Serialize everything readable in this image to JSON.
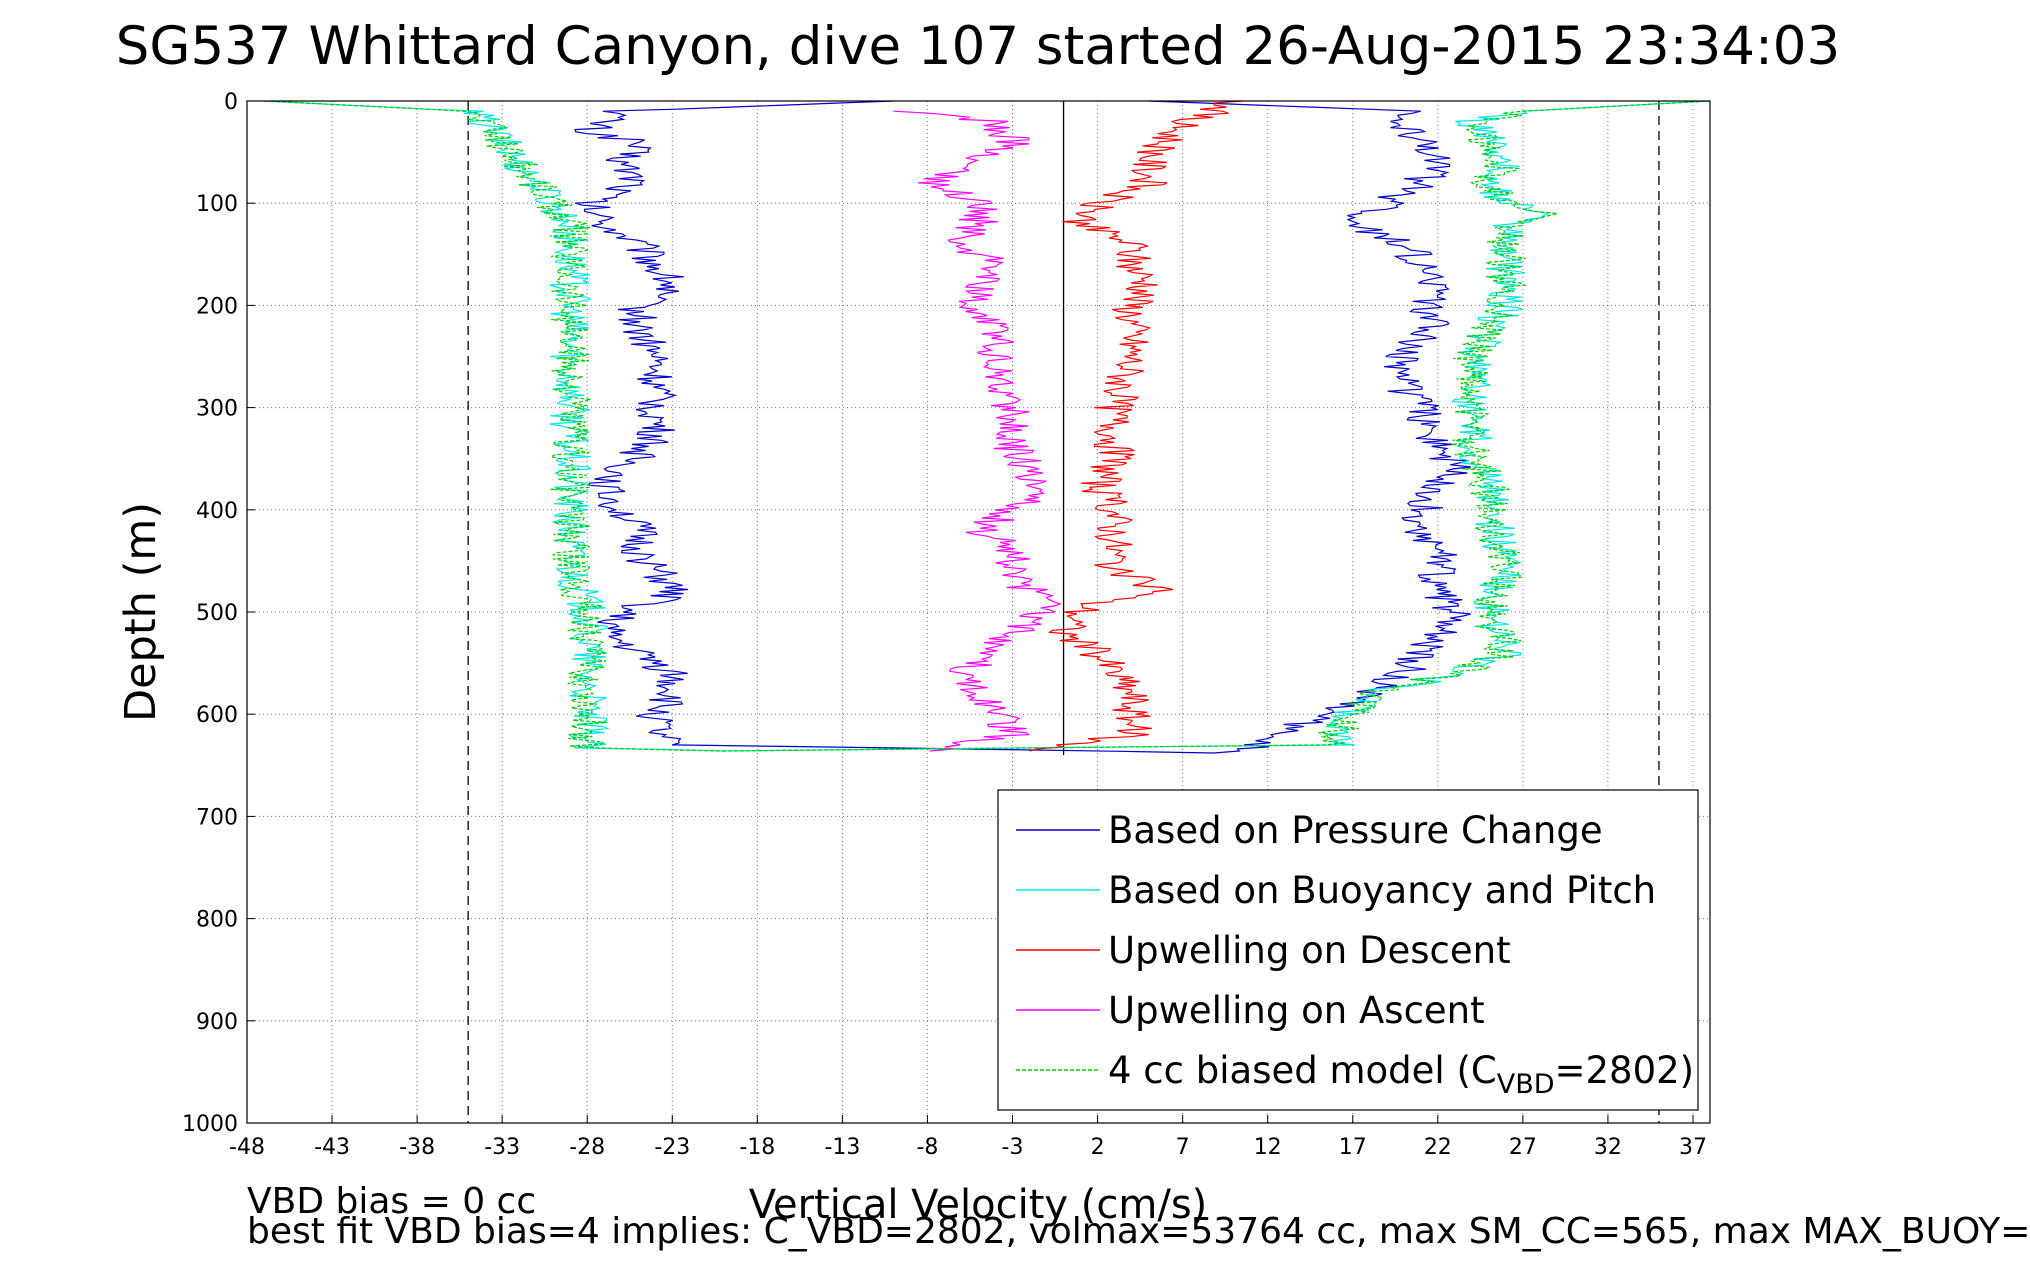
{
  "chart_data": {
    "type": "line",
    "title": "SG537 Whittard Canyon, dive 107 started 26-Aug-2015 23:34:03",
    "xlabel": "Vertical Velocity (cm/s)",
    "ylabel": "Depth (m)",
    "xlim": [
      -48,
      38
    ],
    "ylim": [
      1000,
      0
    ],
    "y_reversed": true,
    "x_ticks": [
      -48,
      -43,
      -38,
      -33,
      -28,
      -23,
      -18,
      -13,
      -8,
      -3,
      2,
      7,
      12,
      17,
      22,
      27,
      32,
      37
    ],
    "y_ticks": [
      0,
      100,
      200,
      300,
      400,
      500,
      600,
      700,
      800,
      900,
      1000
    ],
    "grid": true,
    "grid_style": "dotted",
    "legend_position": "bottom-right",
    "reference_lines": [
      {
        "x": -35,
        "style": "dashed",
        "color": "#000000"
      },
      {
        "x": 35,
        "style": "dashed",
        "color": "#000000"
      },
      {
        "x": 0,
        "style": "solid",
        "color": "#000000",
        "depth_range": [
          0,
          640
        ]
      }
    ],
    "series": [
      {
        "name": "Based on Pressure Change",
        "color": "#0000cc",
        "depth": [
          0,
          10,
          20,
          30,
          40,
          60,
          80,
          100,
          120,
          140,
          160,
          180,
          200,
          220,
          250,
          280,
          300,
          330,
          360,
          380,
          400,
          420,
          440,
          460,
          480,
          490,
          500,
          520,
          540,
          560,
          580,
          600,
          620,
          630,
          633,
          638,
          620,
          600,
          580,
          560,
          540,
          520,
          500,
          480,
          460,
          440,
          420,
          400,
          380,
          360,
          340,
          320,
          300,
          280,
          260,
          240,
          220,
          200,
          180,
          160,
          140,
          120,
          100,
          80,
          60,
          40,
          20,
          10,
          0
        ],
        "values": [
          -10,
          -26,
          -27,
          -28,
          -25,
          -26,
          -25,
          -28,
          -27,
          -25,
          -24,
          -23,
          -25,
          -25,
          -24,
          -24,
          -24,
          -24,
          -26,
          -27,
          -26,
          -25,
          -25,
          -24,
          -23,
          -24,
          -26,
          -27,
          -25,
          -23,
          -23,
          -24,
          -24,
          -23,
          -10,
          10,
          13,
          15,
          18,
          20,
          21,
          22,
          23,
          22,
          22,
          22,
          21,
          21,
          22,
          23,
          22,
          21,
          21,
          20,
          20,
          20,
          22,
          21,
          22,
          21,
          20,
          17,
          19,
          21,
          22,
          21,
          20,
          21,
          5
        ]
      },
      {
        "name": "Based on Buoyancy and Pitch",
        "color": "#00e5e5",
        "depth": [
          0,
          10,
          20,
          40,
          60,
          80,
          100,
          120,
          140,
          160,
          180,
          200,
          250,
          300,
          350,
          380,
          400,
          450,
          500,
          550,
          600,
          620,
          633,
          636,
          630,
          620,
          600,
          580,
          560,
          540,
          500,
          450,
          400,
          370,
          350,
          300,
          250,
          200,
          180,
          150,
          120,
          110,
          100,
          80,
          60,
          40,
          20,
          10,
          0
        ],
        "values": [
          -47,
          -35,
          -34,
          -33,
          -32,
          -31,
          -30,
          -29,
          -29,
          -29,
          -29,
          -29,
          -29,
          -29,
          -29,
          -29,
          -29,
          -29,
          -28,
          -28,
          -28,
          -28,
          -28,
          -20,
          16,
          16,
          17,
          18,
          23,
          26,
          25,
          26,
          25,
          25,
          24,
          24,
          24,
          26,
          26,
          26,
          26,
          28,
          26,
          25,
          26,
          25,
          24,
          27,
          38
        ]
      },
      {
        "name": "Upwelling on Descent",
        "color": "#ff0000",
        "depth": [
          0,
          10,
          20,
          40,
          60,
          80,
          100,
          120,
          140,
          160,
          180,
          200,
          250,
          300,
          350,
          380,
          400,
          420,
          440,
          460,
          480,
          490,
          500,
          520,
          540,
          560,
          580,
          600,
          620,
          636
        ],
        "values": [
          10,
          9,
          7,
          6,
          5,
          5,
          2,
          1,
          4,
          4,
          5,
          4,
          4,
          3,
          3,
          2,
          3,
          3,
          3,
          3,
          6,
          2,
          1,
          0,
          2,
          3,
          4,
          4,
          4,
          -2
        ]
      },
      {
        "name": "Upwelling on Ascent",
        "color": "#ff00ff",
        "depth": [
          636,
          620,
          600,
          580,
          560,
          540,
          520,
          500,
          490,
          480,
          460,
          440,
          420,
          400,
          380,
          360,
          340,
          320,
          300,
          280,
          260,
          240,
          220,
          200,
          180,
          160,
          140,
          120,
          100,
          80,
          60,
          40,
          20,
          10
        ],
        "values": [
          -8,
          -3,
          -4,
          -5,
          -6,
          -4,
          -3,
          -1,
          0,
          -2,
          -3,
          -3,
          -5,
          -3,
          -1,
          -2,
          -3,
          -3,
          -3,
          -4,
          -4,
          -4,
          -4,
          -5,
          -5,
          -4,
          -6,
          -5,
          -5,
          -8,
          -5,
          -3,
          -4,
          -10
        ]
      },
      {
        "name": "4 cc biased model (C_VBD=2802)",
        "legend_label_main": "4 cc biased model (C",
        "legend_label_sub": "VBD",
        "legend_label_end": "=2802)",
        "color": "#00cc00",
        "style": "dashed",
        "depth": [
          0,
          10,
          20,
          40,
          60,
          80,
          100,
          120,
          140,
          160,
          180,
          200,
          250,
          300,
          350,
          380,
          400,
          450,
          500,
          550,
          600,
          620,
          633,
          636,
          630,
          620,
          600,
          580,
          560,
          540,
          500,
          450,
          400,
          370,
          350,
          300,
          250,
          200,
          180,
          150,
          120,
          110,
          100,
          80,
          60,
          40,
          20,
          10,
          0
        ],
        "values": [
          -47,
          -35,
          -34,
          -33,
          -32,
          -31,
          -30,
          -29,
          -29,
          -29,
          -29,
          -29,
          -29,
          -29,
          -29,
          -29,
          -29,
          -29,
          -28,
          -28,
          -28,
          -28,
          -28,
          -20,
          16,
          16,
          17,
          18,
          23,
          26,
          25,
          26,
          25,
          25,
          24,
          24,
          24,
          26,
          26,
          26,
          26,
          28,
          26,
          25,
          26,
          25,
          24,
          27,
          38
        ]
      }
    ]
  },
  "footnotes": {
    "line1": "VBD bias = 0 cc",
    "line2": "best fit VBD bias=4 implies: C_VBD=2802, volmax=53764 cc, max SM_CC=565, max MAX_BUOY="
  }
}
